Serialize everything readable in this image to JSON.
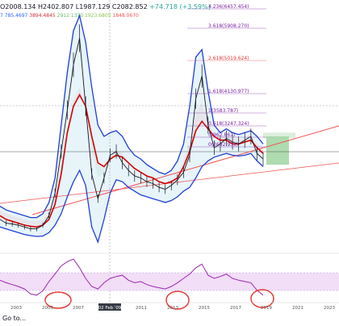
{
  "header": {
    "ohlc_text": "O2008.134 H2402.807 L1987.129 C2082.852",
    "change_text": "+74.718 (+3.59%)",
    "indicator_prefix": "7",
    "indicator_values": [
      {
        "text": "785.4697",
        "color": "#2962ff"
      },
      {
        "text": "3894.4845",
        "color": "#d32f2f"
      },
      {
        "text": "2912.1370",
        "color": "#66bb6a"
      },
      {
        "text": "1923.6805",
        "color": "#8bc34a"
      },
      {
        "text": "1848.0670",
        "color": "#ef5350"
      }
    ]
  },
  "footer": {
    "goto_label": "Go to..."
  },
  "cursor_label": "02 Feb '09",
  "colors": {
    "bollinger": "#1f3fd6",
    "ma": "#d40000",
    "cloud_green": "#a5d6a7",
    "cloud_red": "#ef9a9a",
    "band_fill": "#d7ecf6",
    "rsi": "#9c27b0",
    "rsi_band": "#efd6f5",
    "fib": "#7b1fa2",
    "fib_red": "#e53935",
    "trend": "#ef5350",
    "circle": "#e53935",
    "projection": "#4caf50"
  },
  "chart_data": [
    {
      "type": "line",
      "panel": "price",
      "x_ticks": [
        "2003",
        "2005",
        "2007",
        "2011",
        "2013",
        "2015",
        "2017",
        "2019",
        "2021",
        "2023"
      ],
      "fib_levels": [
        {
          "label": "4.236(6457.454)",
          "red": false
        },
        {
          "label": "3.618(5908.270)",
          "red": false
        },
        {
          "label": "2.618(5019.624)",
          "red": true
        },
        {
          "label": "1.618(4130.977)",
          "red": false
        },
        {
          "label": "1(3583.787)",
          "red": false
        },
        {
          "label": "0.618(3247.324)",
          "red": false
        },
        {
          "label": "(2962.867)",
          "red": false
        },
        {
          "label": "0(2692.931)",
          "red": false
        }
      ],
      "series": [
        {
          "values": [
            1300,
            1200,
            1180,
            1150,
            1100,
            1050,
            1050,
            1150,
            1400,
            2000,
            3100,
            4200,
            5400,
            6100,
            4300,
            2500,
            1850,
            2400,
            3000,
            3100,
            2800,
            2600,
            2450,
            2400,
            2300,
            2250,
            2150,
            2100,
            2200,
            2350,
            2550,
            3000,
            4500,
            5100,
            3800,
            3200,
            3300,
            3450,
            3350,
            3300,
            3400,
            3500,
            3050,
            2900
          ]
        },
        {
          "values": [
            1400,
            1300,
            1250,
            1200,
            1150,
            1120,
            1100,
            1150,
            1300,
            1700,
            2500,
            3600,
            4300,
            4600,
            4300,
            3500,
            2800,
            2700,
            2900,
            3000,
            2950,
            2800,
            2650,
            2550,
            2450,
            2400,
            2300,
            2250,
            2300,
            2400,
            2700,
            3100,
            3650,
            3900,
            3700,
            3500,
            3400,
            3400,
            3300,
            3300,
            3350,
            3400,
            3200,
            3050
          ]
        },
        {
          "values": [
            1650,
            1550,
            1500,
            1450,
            1400,
            1350,
            1350,
            1450,
            1750,
            2400,
            3800,
            5200,
            6300,
            6700,
            6000,
            4800,
            3800,
            3500,
            3600,
            3650,
            3500,
            3200,
            3000,
            2900,
            2750,
            2650,
            2550,
            2500,
            2600,
            2850,
            3300,
            4300,
            5600,
            5800,
            4700,
            3800,
            3600,
            3700,
            3600,
            3550,
            3600,
            3650,
            3500,
            3300
          ]
        },
        {
          "values": [
            1100,
            1050,
            1000,
            950,
            900,
            870,
            850,
            860,
            950,
            1150,
            1450,
            1900,
            2300,
            2600,
            2200,
            1100,
            700,
            1300,
            2000,
            2350,
            2300,
            2150,
            2050,
            1950,
            1900,
            1850,
            1800,
            1750,
            1800,
            1900,
            2050,
            2150,
            2400,
            2700,
            2850,
            2950,
            3000,
            3050,
            3000,
            2980,
            3000,
            3050,
            2850,
            2700
          ]
        }
      ]
    },
    {
      "type": "line",
      "panel": "rsi",
      "series": [
        {
          "values": [
            52,
            48,
            45,
            42,
            38,
            30,
            28,
            35,
            50,
            62,
            75,
            82,
            86,
            72,
            55,
            42,
            38,
            48,
            55,
            58,
            60,
            52,
            48,
            50,
            45,
            42,
            40,
            38,
            42,
            48,
            55,
            62,
            72,
            78,
            60,
            55,
            58,
            62,
            55,
            52,
            50,
            48,
            36,
            28
          ]
        }
      ]
    }
  ]
}
